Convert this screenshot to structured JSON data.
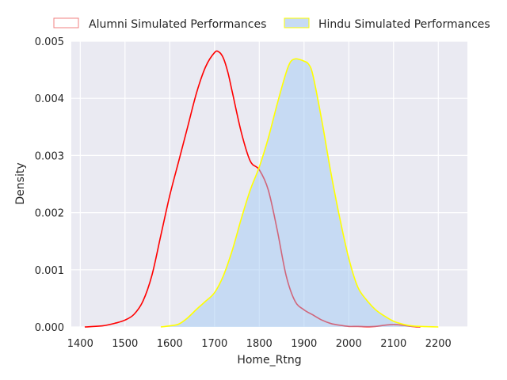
{
  "chart_data": {
    "type": "area",
    "title": "",
    "xlabel": "Home_Rtng",
    "ylabel": "Density",
    "xlim": [
      1380,
      2265
    ],
    "ylim": [
      0,
      0.005
    ],
    "x_ticks": [
      1400,
      1500,
      1600,
      1700,
      1800,
      1900,
      2000,
      2100,
      2200
    ],
    "y_ticks": [
      0.0,
      0.001,
      0.002,
      0.003,
      0.004,
      0.005
    ],
    "y_tick_labels": [
      "0.000",
      "0.001",
      "0.002",
      "0.003",
      "0.004",
      "0.005"
    ],
    "grid": true,
    "legend": {
      "placement": "top",
      "columns": 2
    },
    "series": [
      {
        "name": "Alumni Simulated Performances",
        "line_color": "#ff0000",
        "legend_edge": "#f08080",
        "filled": false,
        "x": [
          1410,
          1450,
          1480,
          1500,
          1520,
          1540,
          1560,
          1580,
          1600,
          1620,
          1640,
          1660,
          1680,
          1700,
          1710,
          1720,
          1730,
          1740,
          1760,
          1780,
          1800,
          1820,
          1840,
          1860,
          1880,
          1900,
          1920,
          1940,
          1960,
          1980,
          2000,
          2020,
          2040,
          2060,
          2080,
          2100,
          2120,
          2140,
          2160
        ],
        "y": [
          0.0,
          2e-05,
          7e-05,
          0.00012,
          0.00022,
          0.00045,
          0.0009,
          0.0016,
          0.0023,
          0.0029,
          0.0035,
          0.0041,
          0.00455,
          0.0048,
          0.00481,
          0.0047,
          0.00445,
          0.0041,
          0.0034,
          0.0029,
          0.00275,
          0.0024,
          0.0017,
          0.0009,
          0.00045,
          0.0003,
          0.00021,
          0.00012,
          6e-05,
          3e-05,
          1e-05,
          1e-05,
          5e-06,
          1e-05,
          3e-05,
          4e-05,
          3e-05,
          1e-05,
          0.0
        ]
      },
      {
        "name": "Hindu Simulated Performances",
        "line_color": "#ffff00",
        "fill_color": "#a1c9f4",
        "filled": true,
        "x": [
          1580,
          1600,
          1620,
          1640,
          1660,
          1680,
          1700,
          1720,
          1740,
          1760,
          1780,
          1800,
          1820,
          1840,
          1860,
          1870,
          1880,
          1890,
          1900,
          1910,
          1920,
          1940,
          1960,
          1980,
          2000,
          2020,
          2040,
          2060,
          2080,
          2100,
          2120,
          2140,
          2160,
          2180,
          2200
        ],
        "y": [
          0.0,
          2e-05,
          5e-05,
          0.00016,
          0.00031,
          0.00045,
          0.0006,
          0.0009,
          0.00135,
          0.0019,
          0.0024,
          0.0028,
          0.0033,
          0.0039,
          0.00445,
          0.00464,
          0.00469,
          0.00468,
          0.00465,
          0.0046,
          0.0044,
          0.0036,
          0.0027,
          0.0019,
          0.0012,
          0.0007,
          0.00047,
          0.0003,
          0.00019,
          0.0001,
          5e-05,
          2e-05,
          1e-05,
          5e-06,
          0.0
        ]
      }
    ]
  }
}
